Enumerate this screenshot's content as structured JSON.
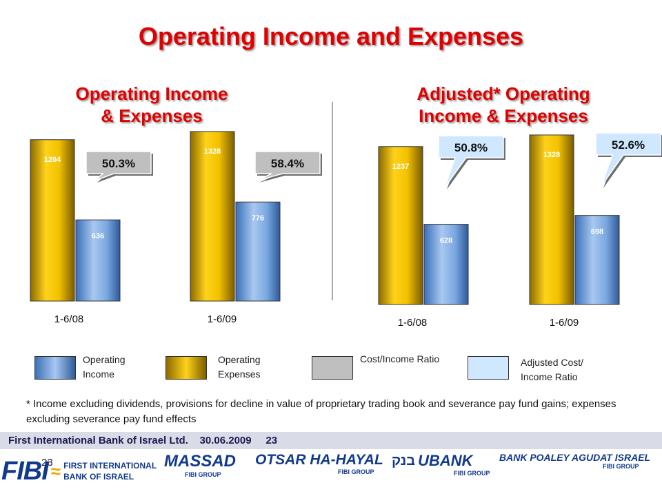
{
  "slide": {
    "title": "Operating Income and Expenses",
    "footnote": "* Income excluding dividends, provisions for decline in value of proprietary trading book and severance pay fund gains; expenses excluding severance pay fund effects",
    "footer": {
      "company": "First International Bank of Israel Ltd.",
      "date": "30.06.2009",
      "page": "23",
      "page_repeat": "23"
    },
    "logos": {
      "fibi": "FIBI",
      "first_international_line1": "FIRST INTERNATIONAL",
      "first_international_line2": "BANK OF ISRAEL",
      "massad": "MASSAD",
      "otsar": "OTSAR HA-HAYAL",
      "ubank": "UBANK",
      "ubank_hebrew": "בנק",
      "poaley": "BANK POALEY AGUDAT ISRAEL",
      "fibi_group": "FIBI GROUP"
    }
  },
  "legend": [
    {
      "label": "Operating Income",
      "color": "#6a9fd8"
    },
    {
      "label": "Operating Expenses",
      "color": "#e8b800"
    },
    {
      "label": "Cost/Income Ratio",
      "color": "#bfbfbf"
    },
    {
      "label": "Adjusted Cost/ Income Ratio",
      "color": "#cfe8ff"
    }
  ],
  "chart_data": [
    {
      "type": "bar",
      "title_line1": "Operating Income",
      "title_line2": "& Expenses",
      "categories": [
        "1-6/08",
        "1-6/09"
      ],
      "series": [
        {
          "name": "Operating Expenses",
          "values": [
            1264,
            1328
          ]
        },
        {
          "name": "Operating Income",
          "values": [
            636,
            776
          ]
        }
      ],
      "ratios": [
        "50.3%",
        "58.4%"
      ],
      "ratio_color": "#bfbfbf"
    },
    {
      "type": "bar",
      "title_line1": "Adjusted* Operating",
      "title_line2": "Income & Expenses",
      "categories": [
        "1-6/08",
        "1-6/09"
      ],
      "series": [
        {
          "name": "Operating Expenses",
          "values": [
            1237,
            1328
          ]
        },
        {
          "name": "Operating Income",
          "values": [
            628,
            698
          ]
        }
      ],
      "ratios": [
        "50.8%",
        "52.6%"
      ],
      "ratio_color": "#cfe8ff"
    }
  ]
}
